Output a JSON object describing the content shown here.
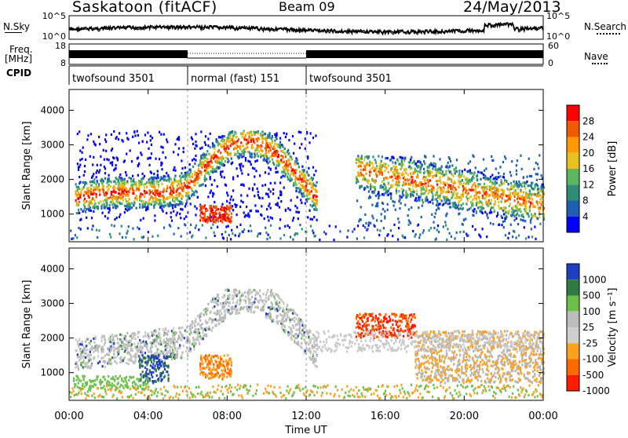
{
  "header": {
    "title": "Saskatoon (fitACF)",
    "beam": "Beam 09",
    "date": "24/May/2013"
  },
  "strips": {
    "noise": {
      "left_label": "N.Sky",
      "right_label": "N.Search",
      "left_ticks": [
        "10^5",
        "10^0"
      ],
      "right_ticks": [
        "10^5",
        "10^0"
      ]
    },
    "freq": {
      "left_label_1": "Freq.",
      "left_label_2": "[MHz]",
      "left_ticks": [
        "18",
        "8"
      ],
      "right_ticks": [
        "60",
        "0"
      ],
      "right_label": "Nave"
    },
    "cpid": {
      "label": "CPID",
      "segments": [
        "twofsound 3501",
        "normal (fast) 151",
        "twofsound 3501"
      ]
    }
  },
  "chart_data": [
    {
      "type": "heatmap",
      "panel": "power",
      "ylabel": "Slant Range [km]",
      "yticks": [
        "1000",
        "2000",
        "3000",
        "4000"
      ],
      "ylim": [
        200,
        4600
      ],
      "xlim": [
        0,
        24
      ],
      "xticks": [
        "00:00",
        "04:00",
        "08:00",
        "12:00",
        "16:00",
        "20:00",
        "00:00"
      ],
      "colorbar_label": "Power [dB]",
      "colorbar_ticks": [
        "4",
        "8",
        "12",
        "16",
        "20",
        "24",
        "28"
      ],
      "colorbar_colors": [
        "#0000ff",
        "#1e5fb4",
        "#2f8c77",
        "#5cb85c",
        "#e8c21c",
        "#ff9a00",
        "#f05a00",
        "#ff0000"
      ],
      "bands": [
        {
          "x": [
            0.3,
            6.0
          ],
          "y": [
            1000,
            2000
          ],
          "level": 3
        },
        {
          "x": [
            6.0,
            12.0
          ],
          "y": [
            2000,
            3400
          ],
          "level": 4
        },
        {
          "x": [
            14.5,
            24.0
          ],
          "y": [
            1000,
            2600
          ],
          "level": 5
        }
      ]
    },
    {
      "type": "heatmap",
      "panel": "velocity",
      "ylabel": "Slant Range [km]",
      "yticks": [
        "1000",
        "2000",
        "3000",
        "4000"
      ],
      "ylim": [
        200,
        4600
      ],
      "xlim": [
        0,
        24
      ],
      "xticks": [
        "00:00",
        "04:00",
        "08:00",
        "12:00",
        "16:00",
        "20:00",
        "00:00"
      ],
      "xlabel": "Time UT",
      "colorbar_label": "Velocity [m s⁻¹]",
      "colorbar_ticks": [
        "1000",
        "500",
        "100",
        "25",
        "-25",
        "-100",
        "-500",
        "-1000"
      ],
      "colorbar_colors": [
        "#1f3fbf",
        "#2e7b44",
        "#6cc04a",
        "#bdbdbd",
        "#cfcfcf",
        "#ffa01e",
        "#ff6a00",
        "#ff1a00"
      ]
    }
  ]
}
